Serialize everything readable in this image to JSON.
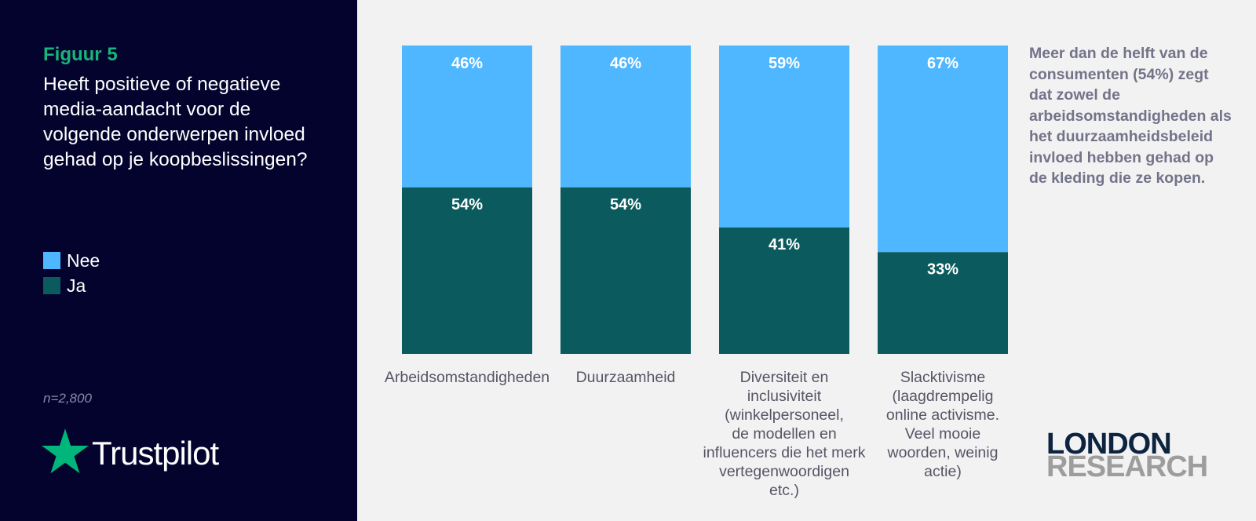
{
  "figure_label": "Figuur 5",
  "question": "Heeft positieve of negatieve media-aandacht voor de volgende onderwerpen invloed gehad op je koopbeslissingen?",
  "legend": [
    {
      "label": "Nee",
      "color": "#4fb7ff"
    },
    {
      "label": "Ja",
      "color": "#0b5a5e"
    }
  ],
  "sample_size": "n=2,800",
  "logo": {
    "text": "Trustpilot",
    "icon": "star-icon",
    "color": "#00b67a"
  },
  "note": "Meer dan de helft van de consumenten (54%) zegt dat zowel de arbeidsomstandigheden als het duurzaamheidsbeleid invloed hebben gehad op de kleding die ze kopen.",
  "brand": {
    "line1": "LONDON",
    "line2": "RESEARCH"
  },
  "chart_data": {
    "type": "bar",
    "stacked": true,
    "percent": true,
    "ylim": [
      0,
      100
    ],
    "grid": false,
    "legend_position": "left",
    "categories": [
      [
        "Arbeidsomstandigheden"
      ],
      [
        "Duurzaamheid"
      ],
      [
        "Diversiteit en",
        "inclusiviteit",
        "(winkelpersoneel,",
        "de modellen en",
        "influencers die het merk",
        "vertegenwoordigen",
        "etc.)"
      ],
      [
        "Slacktivisme",
        "(laagdrempelig",
        "online activisme.",
        "Veel mooie",
        "woorden, weinig",
        "actie)"
      ]
    ],
    "series": [
      {
        "name": "Nee",
        "values": [
          46,
          46,
          59,
          67
        ],
        "labels": [
          "46%",
          "46%",
          "59%",
          "67%"
        ],
        "color": "#4fb7ff"
      },
      {
        "name": "Ja",
        "values": [
          54,
          54,
          41,
          33
        ],
        "labels": [
          "54%",
          "54%",
          "41%",
          "33%"
        ],
        "color": "#0b5a5e"
      }
    ]
  }
}
